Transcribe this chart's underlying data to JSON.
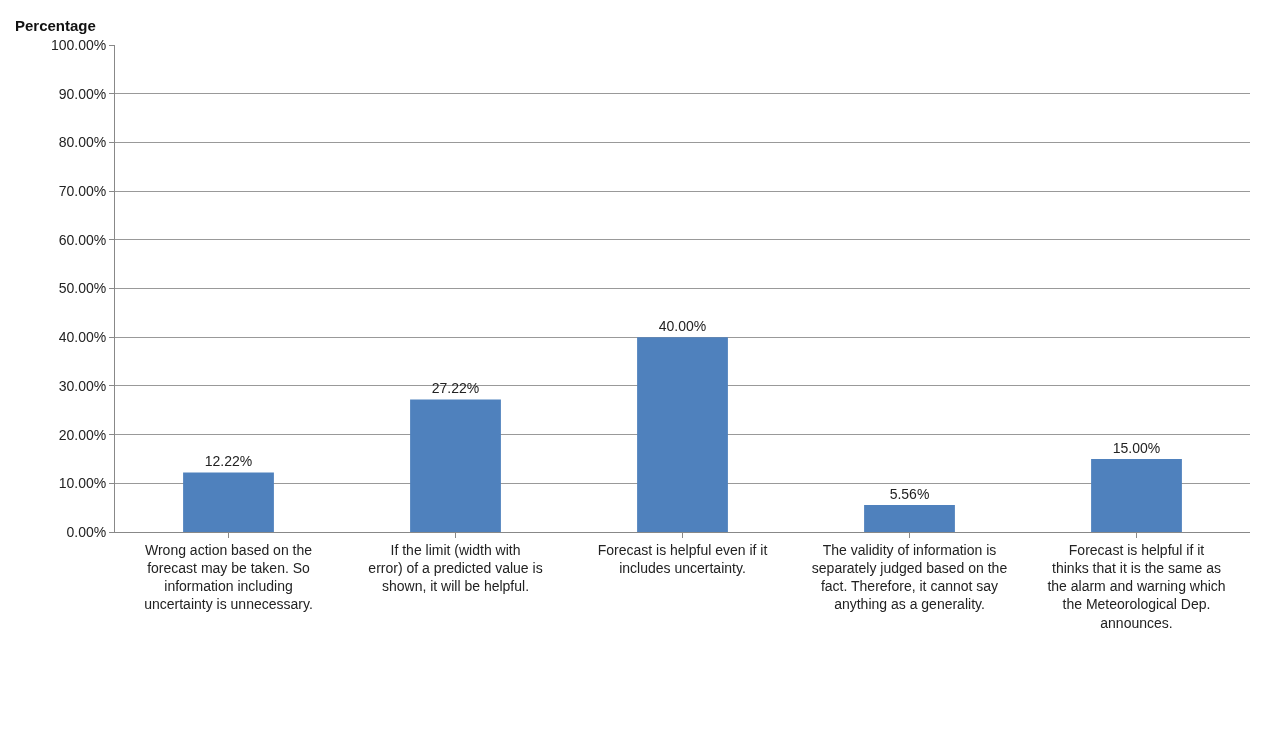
{
  "chart_data": {
    "type": "bar",
    "ylabel": "Percentage",
    "categories": [
      "Wrong action based on the forecast may be taken. So information including uncertainty is unnecessary.",
      "If the limit (width with error) of a predicted value is shown, it will be helpful.",
      "Forecast is helpful even if it includes uncertainty.",
      "The validity of information is separately judged based on the fact. Therefore, it cannot say anything as a generality.",
      "Forecast is helpful if it thinks that it is the same as the alarm and warning which the Meteorological Dep. announces."
    ],
    "values": [
      12.22,
      27.22,
      40.0,
      5.56,
      15.0
    ],
    "value_labels": [
      "12.22%",
      "27.22%",
      "40.00%",
      "5.56%",
      "15.00%"
    ],
    "color": "#4f81bd",
    "ylim": [
      0,
      100
    ],
    "yticks": [
      {
        "value": 0,
        "label": "0.00%"
      },
      {
        "value": 10,
        "label": "10.00%"
      },
      {
        "value": 20,
        "label": "20.00%"
      },
      {
        "value": 30,
        "label": "30.00%"
      },
      {
        "value": 40,
        "label": "40.00%"
      },
      {
        "value": 50,
        "label": "50.00%"
      },
      {
        "value": 60,
        "label": "60.00%"
      },
      {
        "value": 70,
        "label": "70.00%"
      },
      {
        "value": 80,
        "label": "80.00%"
      },
      {
        "value": 90,
        "label": "90.00%"
      },
      {
        "value": 100,
        "label": "100.00%"
      }
    ],
    "grid": "y",
    "legend": false
  }
}
